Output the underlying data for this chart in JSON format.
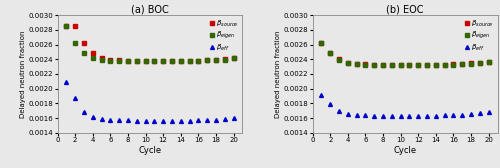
{
  "boc": {
    "cycles": [
      1,
      2,
      3,
      4,
      5,
      6,
      7,
      8,
      9,
      10,
      11,
      12,
      13,
      14,
      15,
      16,
      17,
      18,
      19,
      20
    ],
    "beta_source": [
      0.002855,
      0.002855,
      0.00262,
      0.00249,
      0.00242,
      0.002395,
      0.002385,
      0.002378,
      0.002375,
      0.002375,
      0.002375,
      0.002375,
      0.002375,
      0.002378,
      0.00238,
      0.002382,
      0.002385,
      0.00239,
      0.002398,
      0.002415
    ],
    "beta_eigen": [
      0.00285,
      0.00262,
      0.00249,
      0.00242,
      0.002392,
      0.002382,
      0.002378,
      0.002375,
      0.002375,
      0.002375,
      0.002375,
      0.002375,
      0.002375,
      0.002378,
      0.00238,
      0.002382,
      0.002384,
      0.002388,
      0.002395,
      0.00241
    ],
    "beta_eff": [
      0.002095,
      0.00187,
      0.00168,
      0.00162,
      0.00159,
      0.001578,
      0.001572,
      0.001568,
      0.001565,
      0.001563,
      0.001562,
      0.001562,
      0.001562,
      0.001563,
      0.001565,
      0.001568,
      0.00157,
      0.001575,
      0.001582,
      0.001598
    ]
  },
  "eoc": {
    "cycles": [
      1,
      2,
      3,
      4,
      5,
      6,
      7,
      8,
      9,
      10,
      11,
      12,
      13,
      14,
      15,
      16,
      17,
      18,
      19,
      20
    ],
    "beta_source": [
      0.00262,
      0.002485,
      0.0024,
      0.002355,
      0.002338,
      0.00233,
      0.002326,
      0.002323,
      0.002322,
      0.002322,
      0.002322,
      0.002323,
      0.002324,
      0.002326,
      0.002328,
      0.00233,
      0.002335,
      0.002342,
      0.002352,
      0.002365
    ],
    "beta_eigen": [
      0.002615,
      0.00248,
      0.002395,
      0.00235,
      0.002334,
      0.002326,
      0.002323,
      0.002321,
      0.00232,
      0.00232,
      0.00232,
      0.002321,
      0.002322,
      0.002324,
      0.002326,
      0.002328,
      0.002332,
      0.00234,
      0.00235,
      0.002362
    ],
    "beta_eff": [
      0.00191,
      0.001785,
      0.00169,
      0.001658,
      0.001645,
      0.001638,
      0.001634,
      0.001631,
      0.00163,
      0.001629,
      0.001629,
      0.00163,
      0.001631,
      0.001633,
      0.001636,
      0.001639,
      0.001644,
      0.001652,
      0.001663,
      0.001678
    ]
  },
  "color_source": "#cc0000",
  "color_eigen": "#336600",
  "color_eff": "#0000cc",
  "bg_color": "#e8e8e8",
  "ylim": [
    0.0014,
    0.003
  ],
  "yticks": [
    0.0014,
    0.0016,
    0.0018,
    0.002,
    0.0022,
    0.0024,
    0.0026,
    0.0028,
    0.003
  ],
  "xticks": [
    0,
    2,
    4,
    6,
    8,
    10,
    12,
    14,
    16,
    18,
    20
  ],
  "xlabel": "Cycle",
  "ylabel": "Delayed neutron fraction",
  "title_boc": "(a) BOC",
  "title_eoc": "(b) EOC",
  "legend_source": "$\\beta_{source}$",
  "legend_eigen": "$\\beta_{eigen}$",
  "legend_eff": "$\\beta_{eff}$"
}
